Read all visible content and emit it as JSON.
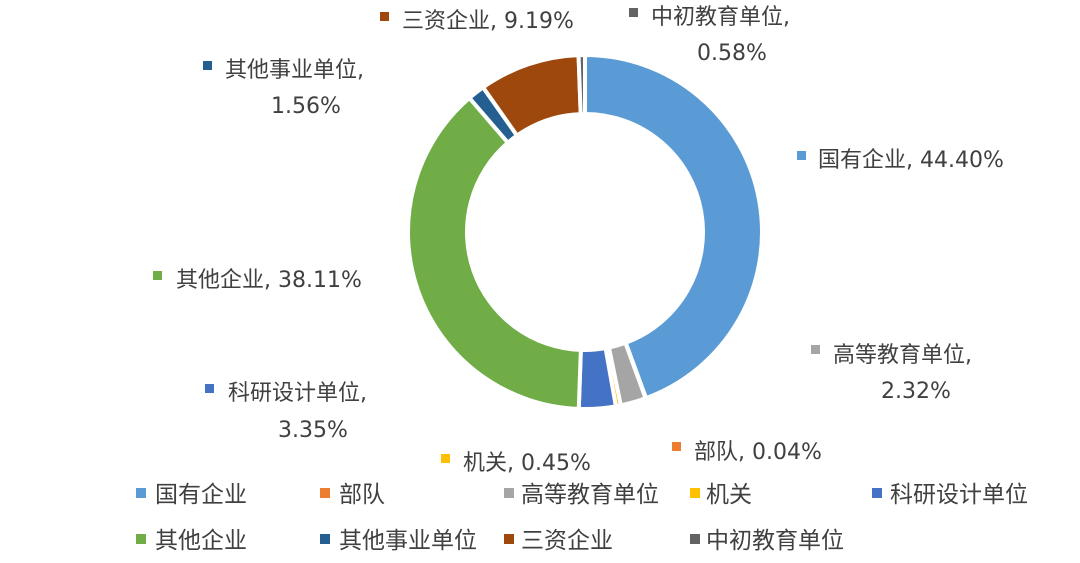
{
  "chart_data": {
    "type": "pie",
    "variant": "donut",
    "title": "",
    "legend_position": "bottom",
    "unit": "%",
    "slices": [
      {
        "name": "国有企业",
        "value": 44.4,
        "label": "国有企业, 44.40%",
        "color": "#5B9BD5"
      },
      {
        "name": "部队",
        "value": 0.04,
        "label": "部队, 0.04%",
        "color": "#ED7D31"
      },
      {
        "name": "高等教育单位",
        "value": 2.32,
        "label_lines": [
          "高等教育单位,",
          "2.32%"
        ],
        "color": "#A5A5A5"
      },
      {
        "name": "机关",
        "value": 0.45,
        "label": "机关, 0.45%",
        "color": "#FFC000"
      },
      {
        "name": "科研设计单位",
        "value": 3.35,
        "label_lines": [
          "科研设计单位,",
          "3.35%"
        ],
        "color": "#4472C4"
      },
      {
        "name": "其他企业",
        "value": 38.11,
        "label": "其他企业, 38.11%",
        "color": "#70AD47"
      },
      {
        "name": "其他事业单位",
        "value": 1.56,
        "label_lines": [
          "其他事业单位,",
          "1.56%"
        ],
        "color": "#255E91"
      },
      {
        "name": "三资企业",
        "value": 9.19,
        "label": "三资企业, 9.19%",
        "color": "#9E480E"
      },
      {
        "name": "中初教育单位",
        "value": 0.58,
        "label_lines": [
          "中初教育单位,",
          "0.58%"
        ],
        "color": "#636363"
      }
    ],
    "legend": [
      "国有企业",
      "部队",
      "高等教育单位",
      "机关",
      "科研设计单位",
      "其他企业",
      "其他事业单位",
      "三资企业",
      "中初教育单位"
    ]
  }
}
